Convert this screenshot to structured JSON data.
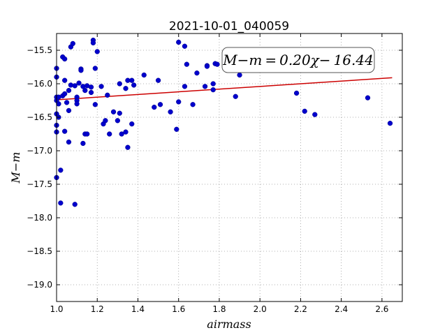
{
  "chart_data": {
    "type": "scatter",
    "title": "2021-10-01_040059",
    "xlabel": "airmass",
    "ylabel": "M−m",
    "xlim": [
      1.0,
      2.7
    ],
    "ylim": [
      -19.25,
      -15.25
    ],
    "y_inverted": true,
    "grid": true,
    "x_ticks": [
      1.0,
      1.2,
      1.4,
      1.6,
      1.8,
      2.0,
      2.2,
      2.4,
      2.6
    ],
    "x_tick_labels": [
      "1.0",
      "1.2",
      "1.4",
      "1.6",
      "1.8",
      "2.0",
      "2.2",
      "2.4",
      "2.6"
    ],
    "y_ticks": [
      -15.5,
      -16.0,
      -16.5,
      -17.0,
      -17.5,
      -18.0,
      -18.5,
      -19.0
    ],
    "y_tick_labels": [
      "−15.5",
      "−16.0",
      "−16.5",
      "−17.0",
      "−17.5",
      "−18.0",
      "−18.5",
      "−19.0"
    ],
    "annotation": "M−m = 0.20χ− 16.44",
    "fit": {
      "slope": 0.2,
      "intercept": -16.44,
      "x_range": [
        1.0,
        2.65
      ]
    },
    "colors": {
      "points": "#0000cc",
      "fit_line": "#cc0000",
      "grid": "#999999"
    },
    "points": [
      {
        "x": 1.0,
        "y": -15.77
      },
      {
        "x": 1.0,
        "y": -15.9
      },
      {
        "x": 1.0,
        "y": -16.2
      },
      {
        "x": 1.0,
        "y": -16.25
      },
      {
        "x": 1.0,
        "y": -16.45
      },
      {
        "x": 1.0,
        "y": -16.62
      },
      {
        "x": 1.0,
        "y": -16.72
      },
      {
        "x": 1.0,
        "y": -17.4
      },
      {
        "x": 1.01,
        "y": -16.2
      },
      {
        "x": 1.01,
        "y": -16.3
      },
      {
        "x": 1.01,
        "y": -16.5
      },
      {
        "x": 1.02,
        "y": -17.29
      },
      {
        "x": 1.02,
        "y": -17.78
      },
      {
        "x": 1.03,
        "y": -15.6
      },
      {
        "x": 1.03,
        "y": -16.18
      },
      {
        "x": 1.04,
        "y": -15.63
      },
      {
        "x": 1.04,
        "y": -15.95
      },
      {
        "x": 1.04,
        "y": -16.15
      },
      {
        "x": 1.04,
        "y": -16.71
      },
      {
        "x": 1.05,
        "y": -16.28
      },
      {
        "x": 1.06,
        "y": -16.4
      },
      {
        "x": 1.06,
        "y": -16.1
      },
      {
        "x": 1.06,
        "y": -16.87
      },
      {
        "x": 1.07,
        "y": -15.45
      },
      {
        "x": 1.07,
        "y": -16.02
      },
      {
        "x": 1.08,
        "y": -15.4
      },
      {
        "x": 1.09,
        "y": -16.03
      },
      {
        "x": 1.09,
        "y": -17.8
      },
      {
        "x": 1.1,
        "y": -16.2
      },
      {
        "x": 1.1,
        "y": -16.25
      },
      {
        "x": 1.1,
        "y": -16.3
      },
      {
        "x": 1.11,
        "y": -15.99
      },
      {
        "x": 1.12,
        "y": -15.78
      },
      {
        "x": 1.12,
        "y": -15.8
      },
      {
        "x": 1.13,
        "y": -16.04
      },
      {
        "x": 1.13,
        "y": -16.89
      },
      {
        "x": 1.14,
        "y": -16.1
      },
      {
        "x": 1.14,
        "y": -16.75
      },
      {
        "x": 1.15,
        "y": -16.03
      },
      {
        "x": 1.15,
        "y": -16.75
      },
      {
        "x": 1.17,
        "y": -16.05
      },
      {
        "x": 1.17,
        "y": -16.13
      },
      {
        "x": 1.18,
        "y": -15.35
      },
      {
        "x": 1.18,
        "y": -15.39
      },
      {
        "x": 1.19,
        "y": -15.77
      },
      {
        "x": 1.19,
        "y": -16.31
      },
      {
        "x": 1.2,
        "y": -15.52
      },
      {
        "x": 1.22,
        "y": -16.04
      },
      {
        "x": 1.23,
        "y": -16.6
      },
      {
        "x": 1.24,
        "y": -16.55
      },
      {
        "x": 1.25,
        "y": -16.17
      },
      {
        "x": 1.26,
        "y": -16.75
      },
      {
        "x": 1.28,
        "y": -16.42
      },
      {
        "x": 1.3,
        "y": -16.55
      },
      {
        "x": 1.31,
        "y": -16.0
      },
      {
        "x": 1.31,
        "y": -16.44
      },
      {
        "x": 1.32,
        "y": -16.75
      },
      {
        "x": 1.34,
        "y": -16.07
      },
      {
        "x": 1.34,
        "y": -16.72
      },
      {
        "x": 1.35,
        "y": -15.95
      },
      {
        "x": 1.35,
        "y": -16.95
      },
      {
        "x": 1.37,
        "y": -15.95
      },
      {
        "x": 1.37,
        "y": -16.6
      },
      {
        "x": 1.38,
        "y": -16.02
      },
      {
        "x": 1.43,
        "y": -15.87
      },
      {
        "x": 1.48,
        "y": -16.35
      },
      {
        "x": 1.5,
        "y": -15.95
      },
      {
        "x": 1.51,
        "y": -16.31
      },
      {
        "x": 1.56,
        "y": -16.42
      },
      {
        "x": 1.59,
        "y": -16.68
      },
      {
        "x": 1.6,
        "y": -15.38
      },
      {
        "x": 1.6,
        "y": -16.27
      },
      {
        "x": 1.63,
        "y": -15.44
      },
      {
        "x": 1.63,
        "y": -16.04
      },
      {
        "x": 1.64,
        "y": -15.71
      },
      {
        "x": 1.67,
        "y": -16.31
      },
      {
        "x": 1.69,
        "y": -15.84
      },
      {
        "x": 1.73,
        "y": -16.04
      },
      {
        "x": 1.74,
        "y": -15.73
      },
      {
        "x": 1.74,
        "y": -15.74
      },
      {
        "x": 1.77,
        "y": -16.0
      },
      {
        "x": 1.77,
        "y": -16.09
      },
      {
        "x": 1.78,
        "y": -15.7
      },
      {
        "x": 1.79,
        "y": -15.71
      },
      {
        "x": 1.88,
        "y": -16.19
      },
      {
        "x": 1.9,
        "y": -15.87
      },
      {
        "x": 2.18,
        "y": -16.14
      },
      {
        "x": 2.22,
        "y": -16.41
      },
      {
        "x": 2.27,
        "y": -16.46
      },
      {
        "x": 2.53,
        "y": -16.21
      },
      {
        "x": 2.64,
        "y": -16.59
      }
    ]
  }
}
